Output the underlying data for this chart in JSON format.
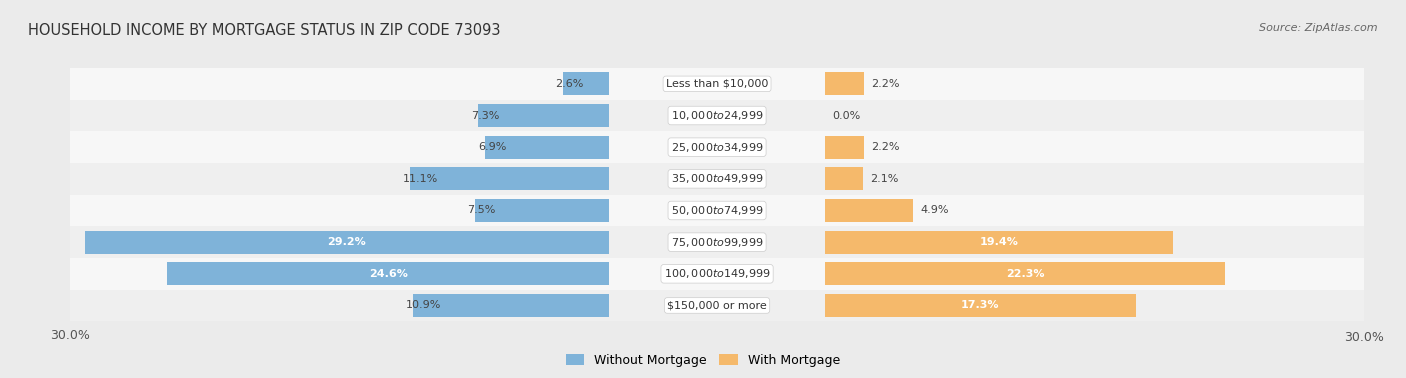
{
  "title": "HOUSEHOLD INCOME BY MORTGAGE STATUS IN ZIP CODE 73093",
  "source": "Source: ZipAtlas.com",
  "categories": [
    "Less than $10,000",
    "$10,000 to $24,999",
    "$25,000 to $34,999",
    "$35,000 to $49,999",
    "$50,000 to $74,999",
    "$75,000 to $99,999",
    "$100,000 to $149,999",
    "$150,000 or more"
  ],
  "without_mortgage": [
    2.6,
    7.3,
    6.9,
    11.1,
    7.5,
    29.2,
    24.6,
    10.9
  ],
  "with_mortgage": [
    2.2,
    0.0,
    2.2,
    2.1,
    4.9,
    19.4,
    22.3,
    17.3
  ],
  "without_color": "#7fb3d9",
  "with_color": "#f5b96b",
  "axis_limit": 30.0,
  "bg_color": "#ebebeb",
  "row_bg_even": "#f5f5f5",
  "row_bg_odd": "#e8e8e8",
  "title_fontsize": 10.5,
  "source_fontsize": 8,
  "tick_fontsize": 9,
  "label_fontsize": 8,
  "category_fontsize": 8,
  "legend_fontsize": 9,
  "bar_height": 0.72
}
